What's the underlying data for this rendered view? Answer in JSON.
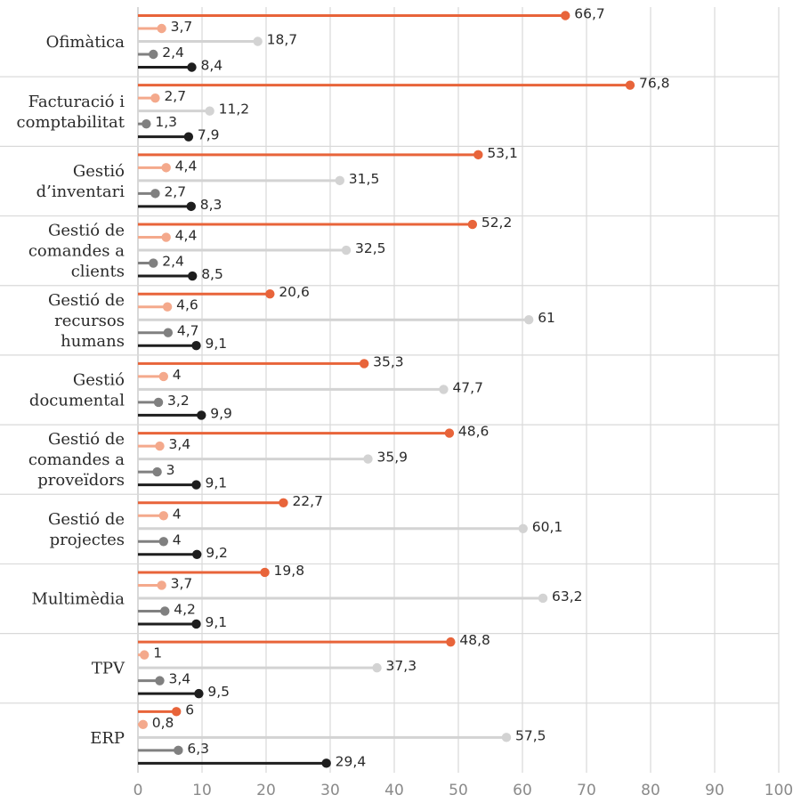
{
  "chart_data": {
    "type": "bar",
    "orientation": "horizontal",
    "style": "lollipop",
    "title": "",
    "xlabel": "",
    "ylabel": "",
    "xlim": [
      0,
      100
    ],
    "xticks": [
      "0",
      "10",
      "20",
      "30",
      "40",
      "50",
      "60",
      "70",
      "80",
      "90",
      "100"
    ],
    "grid": true,
    "categories": [
      [
        "Ofimàtica"
      ],
      [
        "Facturació i",
        "comptabilitat"
      ],
      [
        "Gestió",
        "d’inventari"
      ],
      [
        "Gestió de",
        "comandes a",
        "clients"
      ],
      [
        "Gestió de",
        "recursos",
        "humans"
      ],
      [
        "Gestió",
        "documental"
      ],
      [
        "Gestió de",
        "comandes a",
        "proveïdors"
      ],
      [
        "Gestió de",
        "projectes"
      ],
      [
        "Multimèdia"
      ],
      [
        "TPV"
      ],
      [
        "ERP"
      ]
    ],
    "series": [
      {
        "color": "#e8643a",
        "values": [
          66.7,
          76.8,
          53.1,
          52.2,
          20.6,
          35.3,
          48.6,
          22.7,
          19.8,
          48.8,
          6
        ],
        "labels": [
          "66,7",
          "76,8",
          "53,1",
          "52,2",
          "20,6",
          "35,3",
          "48,6",
          "22,7",
          "19,8",
          "48,8",
          "6"
        ]
      },
      {
        "color": "#f4a98c",
        "values": [
          3.7,
          2.7,
          4.4,
          4.4,
          4.6,
          4,
          3.4,
          4,
          3.7,
          1,
          0.8
        ],
        "labels": [
          "3,7",
          "2,7",
          "4,4",
          "4,4",
          "4,6",
          "4",
          "3,4",
          "4",
          "3,7",
          "1",
          "0,8"
        ]
      },
      {
        "color": "#d3d3d3",
        "values": [
          18.7,
          11.2,
          31.5,
          32.5,
          61,
          47.7,
          35.9,
          60.1,
          63.2,
          37.3,
          57.5
        ],
        "labels": [
          "18,7",
          "11,2",
          "31,5",
          "32,5",
          "61",
          "47,7",
          "35,9",
          "60,1",
          "63,2",
          "37,3",
          "57,5"
        ]
      },
      {
        "color": "#808080",
        "values": [
          2.4,
          1.3,
          2.7,
          2.4,
          4.7,
          3.2,
          3,
          4,
          4.2,
          3.4,
          6.3
        ],
        "labels": [
          "2,4",
          "1,3",
          "2,7",
          "2,4",
          "4,7",
          "3,2",
          "3",
          "4",
          "4,2",
          "3,4",
          "6,3"
        ]
      },
      {
        "color": "#1e1e1e",
        "values": [
          8.4,
          7.9,
          8.3,
          8.5,
          9.1,
          9.9,
          9.1,
          9.2,
          9.1,
          9.5,
          29.4
        ],
        "labels": [
          "8,4",
          "7,9",
          "8,3",
          "8,5",
          "9,1",
          "9,9",
          "9,1",
          "9,2",
          "9,1",
          "9,5",
          "29,4"
        ]
      }
    ]
  }
}
